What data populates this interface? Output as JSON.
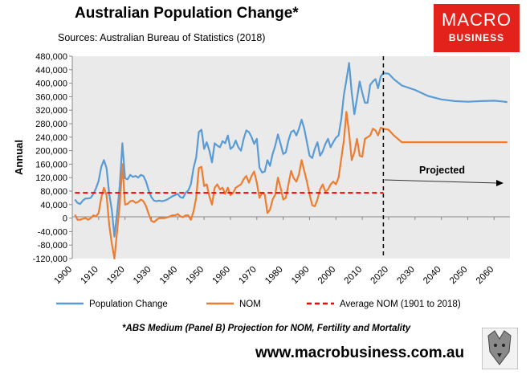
{
  "header": {
    "title": "Australian Population Change*",
    "subtitle": "Sources: Australian Bureau of Statistics (2018)",
    "logo_line1": "MACRO",
    "logo_line2": "BUSINESS"
  },
  "footer": {
    "footnote": "*ABS Medium (Panel B) Projection for NOM, Fertility and Mortality",
    "website": "www.macrobusiness.com.au"
  },
  "colors": {
    "population": "#5b9bd5",
    "nom": "#ed7d31",
    "average": "#ff0000",
    "plot_bg": "#eaeaea",
    "logo": "#e3231b"
  },
  "chart_data": {
    "type": "line",
    "title": "Australian Population Change*",
    "ylabel": "Annual",
    "xlabel": "",
    "xlim": [
      1900,
      2066
    ],
    "ylim": [
      -120000,
      480000
    ],
    "ytick_step": 40000,
    "xtick_step": 10,
    "grid": false,
    "legend_position": "bottom",
    "annotation": "Projected",
    "projection_start": 2018,
    "series": [
      {
        "name": "Population Change",
        "color": "#5b9bd5",
        "style": "solid",
        "points": [
          [
            1901,
            55000
          ],
          [
            1902,
            45000
          ],
          [
            1903,
            42000
          ],
          [
            1904,
            52000
          ],
          [
            1905,
            58000
          ],
          [
            1906,
            58000
          ],
          [
            1907,
            60000
          ],
          [
            1908,
            72000
          ],
          [
            1909,
            88000
          ],
          [
            1910,
            110000
          ],
          [
            1911,
            152000
          ],
          [
            1912,
            172000
          ],
          [
            1913,
            148000
          ],
          [
            1914,
            72000
          ],
          [
            1915,
            25000
          ],
          [
            1916,
            -55000
          ],
          [
            1917,
            15000
          ],
          [
            1918,
            95000
          ],
          [
            1919,
            222000
          ],
          [
            1920,
            118000
          ],
          [
            1921,
            115000
          ],
          [
            1922,
            128000
          ],
          [
            1923,
            122000
          ],
          [
            1924,
            125000
          ],
          [
            1925,
            120000
          ],
          [
            1926,
            128000
          ],
          [
            1927,
            125000
          ],
          [
            1928,
            108000
          ],
          [
            1929,
            82000
          ],
          [
            1930,
            62000
          ],
          [
            1931,
            52000
          ],
          [
            1932,
            50000
          ],
          [
            1933,
            52000
          ],
          [
            1934,
            50000
          ],
          [
            1935,
            52000
          ],
          [
            1936,
            55000
          ],
          [
            1937,
            60000
          ],
          [
            1938,
            65000
          ],
          [
            1939,
            68000
          ],
          [
            1940,
            72000
          ],
          [
            1941,
            62000
          ],
          [
            1942,
            60000
          ],
          [
            1943,
            75000
          ],
          [
            1944,
            82000
          ],
          [
            1945,
            100000
          ],
          [
            1946,
            148000
          ],
          [
            1947,
            180000
          ],
          [
            1948,
            255000
          ],
          [
            1949,
            262000
          ],
          [
            1950,
            205000
          ],
          [
            1951,
            225000
          ],
          [
            1952,
            200000
          ],
          [
            1953,
            165000
          ],
          [
            1954,
            222000
          ],
          [
            1955,
            215000
          ],
          [
            1956,
            210000
          ],
          [
            1957,
            228000
          ],
          [
            1958,
            222000
          ],
          [
            1959,
            245000
          ],
          [
            1960,
            205000
          ],
          [
            1961,
            212000
          ],
          [
            1962,
            230000
          ],
          [
            1963,
            210000
          ],
          [
            1964,
            200000
          ],
          [
            1965,
            235000
          ],
          [
            1966,
            260000
          ],
          [
            1967,
            255000
          ],
          [
            1968,
            240000
          ],
          [
            1969,
            220000
          ],
          [
            1970,
            235000
          ],
          [
            1971,
            150000
          ],
          [
            1972,
            135000
          ],
          [
            1973,
            138000
          ],
          [
            1974,
            172000
          ],
          [
            1975,
            155000
          ],
          [
            1976,
            190000
          ],
          [
            1977,
            215000
          ],
          [
            1978,
            248000
          ],
          [
            1979,
            220000
          ],
          [
            1980,
            190000
          ],
          [
            1981,
            195000
          ],
          [
            1982,
            230000
          ],
          [
            1983,
            255000
          ],
          [
            1984,
            260000
          ],
          [
            1985,
            245000
          ],
          [
            1986,
            265000
          ],
          [
            1987,
            292000
          ],
          [
            1988,
            265000
          ],
          [
            1989,
            225000
          ],
          [
            1990,
            185000
          ],
          [
            1991,
            178000
          ],
          [
            1992,
            205000
          ],
          [
            1993,
            225000
          ],
          [
            1994,
            185000
          ],
          [
            1995,
            198000
          ],
          [
            1996,
            220000
          ],
          [
            1997,
            235000
          ],
          [
            1998,
            210000
          ],
          [
            1999,
            225000
          ],
          [
            2000,
            238000
          ],
          [
            2001,
            245000
          ],
          [
            2002,
            292000
          ],
          [
            2003,
            365000
          ],
          [
            2004,
            410000
          ],
          [
            2005,
            460000
          ],
          [
            2006,
            372000
          ],
          [
            2007,
            308000
          ],
          [
            2008,
            355000
          ],
          [
            2009,
            405000
          ],
          [
            2010,
            372000
          ],
          [
            2011,
            342000
          ],
          [
            2012,
            342000
          ],
          [
            2013,
            395000
          ],
          [
            2014,
            405000
          ],
          [
            2015,
            412000
          ],
          [
            2016,
            385000
          ],
          [
            2017,
            420000
          ],
          [
            2018,
            430000
          ]
        ]
      },
      {
        "name": "Population Change",
        "color": "#5b9bd5",
        "style": "solid",
        "points": [
          [
            2018,
            430000
          ],
          [
            2020,
            428000
          ],
          [
            2022,
            412000
          ],
          [
            2025,
            393000
          ],
          [
            2030,
            380000
          ],
          [
            2035,
            362000
          ],
          [
            2040,
            352000
          ],
          [
            2045,
            347000
          ],
          [
            2050,
            345000
          ],
          [
            2055,
            347000
          ],
          [
            2060,
            348000
          ],
          [
            2063,
            346000
          ],
          [
            2065,
            344000
          ]
        ]
      },
      {
        "name": "NOM",
        "color": "#ed7d31",
        "style": "solid",
        "points": [
          [
            1901,
            10000
          ],
          [
            1902,
            -5000
          ],
          [
            1903,
            -5000
          ],
          [
            1904,
            -2000
          ],
          [
            1905,
            0
          ],
          [
            1906,
            -5000
          ],
          [
            1907,
            0
          ],
          [
            1908,
            8000
          ],
          [
            1909,
            5000
          ],
          [
            1910,
            15000
          ],
          [
            1911,
            60000
          ],
          [
            1912,
            90000
          ],
          [
            1913,
            68000
          ],
          [
            1914,
            -20000
          ],
          [
            1915,
            -75000
          ],
          [
            1916,
            -120000
          ],
          [
            1917,
            -40000
          ],
          [
            1918,
            40000
          ],
          [
            1919,
            160000
          ],
          [
            1920,
            40000
          ],
          [
            1921,
            42000
          ],
          [
            1922,
            50000
          ],
          [
            1923,
            52000
          ],
          [
            1924,
            45000
          ],
          [
            1925,
            48000
          ],
          [
            1926,
            55000
          ],
          [
            1927,
            50000
          ],
          [
            1928,
            35000
          ],
          [
            1929,
            12000
          ],
          [
            1930,
            -8000
          ],
          [
            1931,
            -12000
          ],
          [
            1932,
            -5000
          ],
          [
            1933,
            0
          ],
          [
            1934,
            0
          ],
          [
            1935,
            0
          ],
          [
            1936,
            2000
          ],
          [
            1937,
            5000
          ],
          [
            1938,
            8000
          ],
          [
            1939,
            8000
          ],
          [
            1940,
            12000
          ],
          [
            1941,
            5000
          ],
          [
            1942,
            3000
          ],
          [
            1943,
            8000
          ],
          [
            1944,
            8000
          ],
          [
            1945,
            -5000
          ],
          [
            1946,
            20000
          ],
          [
            1947,
            60000
          ],
          [
            1948,
            148000
          ],
          [
            1949,
            152000
          ],
          [
            1950,
            95000
          ],
          [
            1951,
            100000
          ],
          [
            1952,
            65000
          ],
          [
            1953,
            40000
          ],
          [
            1954,
            90000
          ],
          [
            1955,
            100000
          ],
          [
            1956,
            85000
          ],
          [
            1957,
            90000
          ],
          [
            1958,
            72000
          ],
          [
            1959,
            90000
          ],
          [
            1960,
            68000
          ],
          [
            1961,
            75000
          ],
          [
            1962,
            90000
          ],
          [
            1963,
            95000
          ],
          [
            1964,
            100000
          ],
          [
            1965,
            115000
          ],
          [
            1966,
            125000
          ],
          [
            1967,
            105000
          ],
          [
            1968,
            125000
          ],
          [
            1969,
            138000
          ],
          [
            1970,
            105000
          ],
          [
            1971,
            60000
          ],
          [
            1972,
            75000
          ],
          [
            1973,
            70000
          ],
          [
            1974,
            15000
          ],
          [
            1975,
            25000
          ],
          [
            1976,
            55000
          ],
          [
            1977,
            70000
          ],
          [
            1978,
            120000
          ],
          [
            1979,
            90000
          ],
          [
            1980,
            55000
          ],
          [
            1981,
            60000
          ],
          [
            1982,
            100000
          ],
          [
            1983,
            140000
          ],
          [
            1984,
            118000
          ],
          [
            1985,
            108000
          ],
          [
            1986,
            130000
          ],
          [
            1987,
            172000
          ],
          [
            1988,
            140000
          ],
          [
            1989,
            108000
          ],
          [
            1990,
            70000
          ],
          [
            1991,
            38000
          ],
          [
            1992,
            35000
          ],
          [
            1993,
            55000
          ],
          [
            1994,
            85000
          ],
          [
            1995,
            100000
          ],
          [
            1996,
            78000
          ],
          [
            1997,
            85000
          ],
          [
            1998,
            100000
          ],
          [
            1999,
            108000
          ],
          [
            2000,
            100000
          ],
          [
            2001,
            120000
          ],
          [
            2002,
            175000
          ],
          [
            2003,
            230000
          ],
          [
            2004,
            315000
          ],
          [
            2005,
            252000
          ],
          [
            2006,
            172000
          ],
          [
            2007,
            195000
          ],
          [
            2008,
            235000
          ],
          [
            2009,
            185000
          ],
          [
            2010,
            182000
          ],
          [
            2011,
            235000
          ],
          [
            2012,
            240000
          ],
          [
            2013,
            245000
          ],
          [
            2014,
            265000
          ],
          [
            2015,
            260000
          ],
          [
            2016,
            245000
          ],
          [
            2017,
            268000
          ],
          [
            2018,
            265000
          ]
        ]
      },
      {
        "name": "NOM",
        "color": "#ed7d31",
        "style": "solid",
        "points": [
          [
            2018,
            265000
          ],
          [
            2020,
            262000
          ],
          [
            2022,
            245000
          ],
          [
            2025,
            225000
          ],
          [
            2030,
            225000
          ],
          [
            2040,
            225000
          ],
          [
            2050,
            225000
          ],
          [
            2060,
            225000
          ],
          [
            2065,
            225000
          ]
        ]
      },
      {
        "name": "Average NOM (1901 to 2018)",
        "color": "#ff0000",
        "style": "dashed",
        "points": [
          [
            1901,
            75000
          ],
          [
            2018,
            75000
          ]
        ]
      }
    ],
    "legend": [
      {
        "label": "Population Change",
        "color": "#5b9bd5",
        "style": "solid"
      },
      {
        "label": "NOM",
        "color": "#ed7d31",
        "style": "solid"
      },
      {
        "label": "Average NOM (1901 to 2018)",
        "color": "#ff0000",
        "style": "dashed"
      }
    ]
  }
}
